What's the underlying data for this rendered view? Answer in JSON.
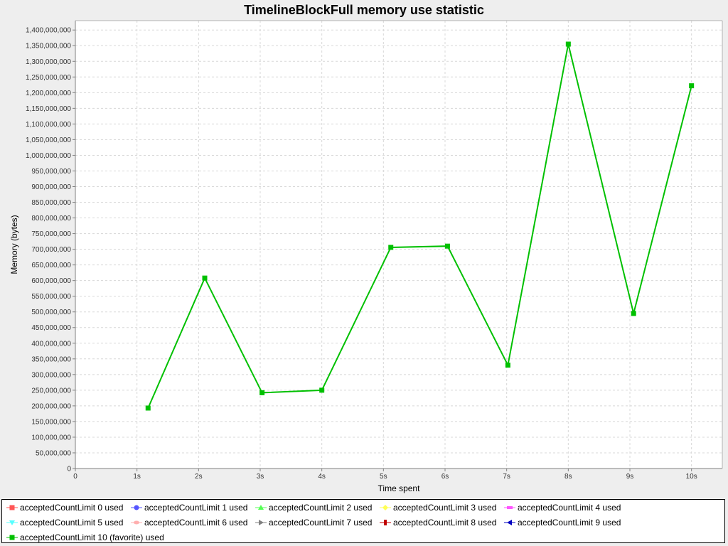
{
  "chart_data": {
    "type": "line",
    "title": "TimelineBlockFull memory use statistic",
    "xlabel": "Time spent",
    "ylabel": "Memory (bytes)",
    "xlim": [
      0,
      10.5
    ],
    "ylim": [
      0,
      1430000000
    ],
    "x_ticks": [
      {
        "value": 0,
        "label": "0"
      },
      {
        "value": 1,
        "label": "1s"
      },
      {
        "value": 2,
        "label": "2s"
      },
      {
        "value": 3,
        "label": "3s"
      },
      {
        "value": 4,
        "label": "4s"
      },
      {
        "value": 5,
        "label": "5s"
      },
      {
        "value": 6,
        "label": "6s"
      },
      {
        "value": 7,
        "label": "7s"
      },
      {
        "value": 8,
        "label": "8s"
      },
      {
        "value": 9,
        "label": "9s"
      },
      {
        "value": 10,
        "label": "10s"
      }
    ],
    "y_tick_step": 50000000,
    "y_tick_max": 1400000000,
    "grid": true,
    "legend_position": "bottom",
    "series": [
      {
        "name": "acceptedCountLimit 0 used",
        "color": "#ff5555",
        "marker": "square",
        "x": [],
        "y": []
      },
      {
        "name": "acceptedCountLimit 1 used",
        "color": "#5555ff",
        "marker": "circle",
        "x": [],
        "y": []
      },
      {
        "name": "acceptedCountLimit 2 used",
        "color": "#55ff55",
        "marker": "triangle-up",
        "x": [],
        "y": []
      },
      {
        "name": "acceptedCountLimit 3 used",
        "color": "#ffff55",
        "marker": "diamond",
        "x": [],
        "y": []
      },
      {
        "name": "acceptedCountLimit 4 used",
        "color": "#ff55ff",
        "marker": "rect-h",
        "x": [],
        "y": []
      },
      {
        "name": "acceptedCountLimit 5 used",
        "color": "#55ffff",
        "marker": "triangle-down",
        "x": [],
        "y": []
      },
      {
        "name": "acceptedCountLimit 6 used",
        "color": "#ffafaf",
        "marker": "ellipse",
        "x": [],
        "y": []
      },
      {
        "name": "acceptedCountLimit 7 used",
        "color": "#808080",
        "marker": "triangle-right",
        "x": [],
        "y": []
      },
      {
        "name": "acceptedCountLimit 8 used",
        "color": "#c00000",
        "marker": "rect-v",
        "x": [],
        "y": []
      },
      {
        "name": "acceptedCountLimit 9 used",
        "color": "#0000c0",
        "marker": "triangle-left",
        "x": [],
        "y": []
      },
      {
        "name": "acceptedCountLimit 10 (favorite) used",
        "color": "#00c000",
        "marker": "square",
        "x": [
          1.18,
          2.1,
          3.03,
          4.0,
          5.12,
          6.04,
          7.02,
          8.0,
          9.06,
          10.0
        ],
        "y": [
          193000000,
          608000000,
          242000000,
          250000000,
          706000000,
          710000000,
          330000000,
          1355000000,
          495000000,
          1222000000
        ]
      }
    ]
  }
}
